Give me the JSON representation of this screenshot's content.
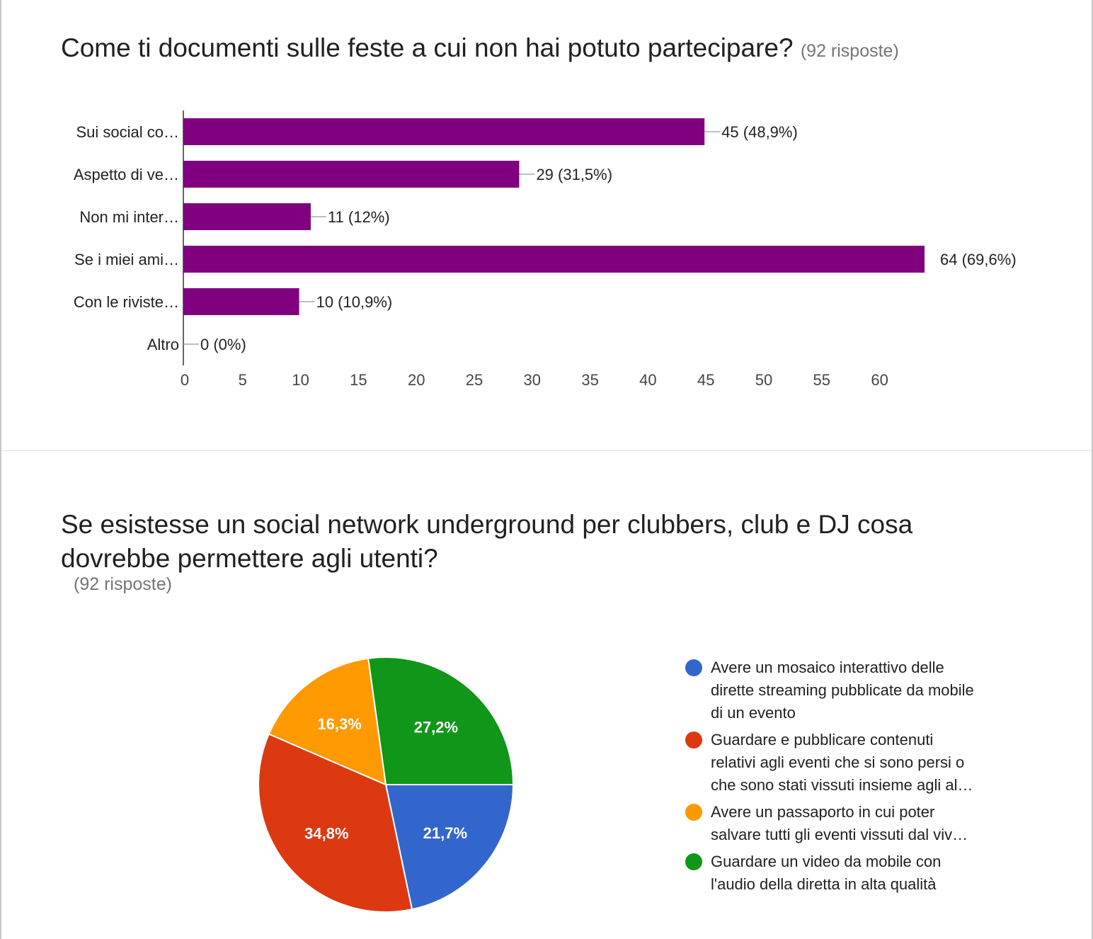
{
  "question1": {
    "title": "Come ti documenti sulle feste a cui non hai potuto partecipare?",
    "responses": "(92 risposte)"
  },
  "question2": {
    "title_line1": "Se esistesse un social network underground per clubbers, club e DJ cosa",
    "title_line2": "dovrebbe permettere agli utenti?",
    "responses": "(92 risposte)"
  },
  "chart_data": [
    {
      "type": "bar",
      "orientation": "horizontal",
      "categories": [
        "Sui social co…",
        "Aspetto di ve…",
        "Non mi inter…",
        "Se i miei ami…",
        "Con le riviste…",
        "Altro"
      ],
      "values": [
        45,
        29,
        11,
        64,
        10,
        0
      ],
      "data_labels": [
        "45 (48,9%)",
        "29 (31,5%)",
        "11 (12%)",
        "64 (69,6%)",
        "10 (10,9%)",
        "0 (0%)"
      ],
      "x_ticks": [
        0,
        5,
        10,
        15,
        20,
        25,
        30,
        35,
        40,
        45,
        50,
        55,
        60
      ],
      "xlim": [
        0,
        65
      ],
      "grid": false,
      "color": "#800080"
    },
    {
      "type": "pie",
      "slices": [
        {
          "label": "Avere un mosaico interattivo delle dirette streaming pubblicate da mobile di un evento",
          "legend_lines": [
            "Avere un mosaico interattivo delle",
            "dirette streaming pubblicate da mobile",
            "di un evento"
          ],
          "value": 21.7,
          "display": "21,7%",
          "color": "#3366cc"
        },
        {
          "label": "Guardare e pubblicare contenuti relativi agli eventi che si sono persi o che sono stati vissuti insieme agli al…",
          "legend_lines": [
            "Guardare e pubblicare contenuti",
            "relativi agli eventi che si sono persi o",
            "che sono stati vissuti insieme agli al…"
          ],
          "value": 34.8,
          "display": "34,8%",
          "color": "#dc3912"
        },
        {
          "label": "Avere un passaporto in cui poter salvare tutti gli eventi vissuti dal viv…",
          "legend_lines": [
            "Avere un passaporto in cui poter",
            "salvare tutti gli eventi vissuti dal viv…"
          ],
          "value": 16.3,
          "display": "16,3%",
          "color": "#ff9900"
        },
        {
          "label": "Guardare un video da mobile con l'audio della diretta in alta qualità",
          "legend_lines": [
            "Guardare un video da mobile con",
            "l'audio della diretta in alta qualità"
          ],
          "value": 27.2,
          "display": "27,2%",
          "color": "#109618"
        }
      ],
      "legend_position": "right"
    }
  ]
}
